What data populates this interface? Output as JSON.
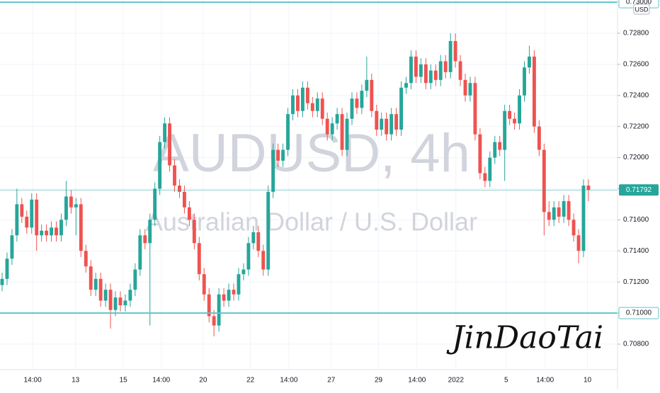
{
  "chart_data": {
    "type": "candlestick",
    "title": "AUDUSD, 4h",
    "subtitle": "Australian Dollar / U.S. Dollar",
    "annotation": "JinDaoTai",
    "currency": "USD",
    "up_color": "#26a69a",
    "down_color": "#ef5350",
    "line_color": "#5fc4c9",
    "grid": true,
    "ylim": [
      0.70636,
      0.73014
    ],
    "xlim": [
      -0.43,
      124.9
    ],
    "yticks": [
      {
        "value": 0.708,
        "label": "0.70800"
      },
      {
        "value": 0.71,
        "label": "0.71000"
      },
      {
        "value": 0.712,
        "label": "0.71200"
      },
      {
        "value": 0.714,
        "label": "0.71400"
      },
      {
        "value": 0.716,
        "label": "0.71600"
      },
      {
        "value": 0.718,
        "label": "0.71800"
      },
      {
        "value": 0.72,
        "label": "0.72000"
      },
      {
        "value": 0.722,
        "label": "0.72200"
      },
      {
        "value": 0.724,
        "label": "0.72400"
      },
      {
        "value": 0.726,
        "label": "0.72600"
      },
      {
        "value": 0.728,
        "label": "0.72800"
      }
    ],
    "xticks": [
      {
        "value": 6.2,
        "label": "14:00"
      },
      {
        "value": 14.9,
        "label": "13"
      },
      {
        "value": 24.6,
        "label": "15"
      },
      {
        "value": 32.3,
        "label": "14:00"
      },
      {
        "value": 40.8,
        "label": "20"
      },
      {
        "value": 50.4,
        "label": "22"
      },
      {
        "value": 58.2,
        "label": "14:00"
      },
      {
        "value": 66.8,
        "label": "27"
      },
      {
        "value": 76.4,
        "label": "29"
      },
      {
        "value": 84.2,
        "label": "14:00"
      },
      {
        "value": 92.1,
        "label": "2022"
      },
      {
        "value": 102.3,
        "label": "5"
      },
      {
        "value": 110.2,
        "label": "14:00"
      },
      {
        "value": 118.8,
        "label": "10"
      }
    ],
    "levels": [
      {
        "value": 0.73,
        "label": "0.73000"
      },
      {
        "value": 0.71,
        "label": "0.71000"
      }
    ],
    "last_price": {
      "value": 0.71792,
      "label": "0.71792"
    },
    "ohlc": [
      [
        0.7118,
        0.7126,
        0.7114,
        0.7122
      ],
      [
        0.7122,
        0.7139,
        0.7118,
        0.7135
      ],
      [
        0.7135,
        0.7154,
        0.7131,
        0.715
      ],
      [
        0.715,
        0.718,
        0.7146,
        0.717
      ],
      [
        0.717,
        0.7174,
        0.7158,
        0.7162
      ],
      [
        0.7162,
        0.7166,
        0.7151,
        0.7155
      ],
      [
        0.7155,
        0.7177,
        0.7151,
        0.7173
      ],
      [
        0.7173,
        0.7177,
        0.714,
        0.715
      ],
      [
        0.715,
        0.7157,
        0.7146,
        0.7153
      ],
      [
        0.7153,
        0.7157,
        0.7146,
        0.715
      ],
      [
        0.715,
        0.7159,
        0.7146,
        0.7155
      ],
      [
        0.7155,
        0.7159,
        0.7146,
        0.715
      ],
      [
        0.715,
        0.7164,
        0.7146,
        0.716
      ],
      [
        0.716,
        0.7185,
        0.7156,
        0.7175
      ],
      [
        0.7175,
        0.7179,
        0.7164,
        0.7168
      ],
      [
        0.7168,
        0.7174,
        0.715,
        0.717
      ],
      [
        0.717,
        0.7174,
        0.7136,
        0.714
      ],
      [
        0.714,
        0.7144,
        0.7126,
        0.713
      ],
      [
        0.713,
        0.7134,
        0.7111,
        0.7115
      ],
      [
        0.7115,
        0.7126,
        0.7111,
        0.7122
      ],
      [
        0.7122,
        0.7126,
        0.7104,
        0.7108
      ],
      [
        0.7108,
        0.7119,
        0.7104,
        0.7115
      ],
      [
        0.7115,
        0.7119,
        0.709,
        0.7102
      ],
      [
        0.7102,
        0.7114,
        0.7098,
        0.711
      ],
      [
        0.711,
        0.7114,
        0.7101,
        0.7105
      ],
      [
        0.7105,
        0.7112,
        0.7101,
        0.7108
      ],
      [
        0.7108,
        0.7119,
        0.7104,
        0.7115
      ],
      [
        0.7115,
        0.7132,
        0.7111,
        0.7128
      ],
      [
        0.7128,
        0.7154,
        0.7124,
        0.715
      ],
      [
        0.715,
        0.7154,
        0.7141,
        0.7145
      ],
      [
        0.7145,
        0.7164,
        0.7092,
        0.716
      ],
      [
        0.716,
        0.7184,
        0.7156,
        0.718
      ],
      [
        0.718,
        0.7214,
        0.7176,
        0.721
      ],
      [
        0.721,
        0.7226,
        0.7206,
        0.7222
      ],
      [
        0.7222,
        0.7226,
        0.7191,
        0.7195
      ],
      [
        0.7195,
        0.7199,
        0.7178,
        0.7182
      ],
      [
        0.7182,
        0.7186,
        0.7174,
        0.7178
      ],
      [
        0.7178,
        0.7182,
        0.7164,
        0.7168
      ],
      [
        0.7168,
        0.7172,
        0.7156,
        0.716
      ],
      [
        0.716,
        0.7164,
        0.7141,
        0.7145
      ],
      [
        0.7145,
        0.7149,
        0.7121,
        0.7125
      ],
      [
        0.7125,
        0.7129,
        0.7108,
        0.7112
      ],
      [
        0.7112,
        0.7116,
        0.7094,
        0.7098
      ],
      [
        0.7098,
        0.7102,
        0.7085,
        0.7092
      ],
      [
        0.7092,
        0.7116,
        0.7088,
        0.7112
      ],
      [
        0.7112,
        0.7116,
        0.7104,
        0.7108
      ],
      [
        0.7108,
        0.7119,
        0.7104,
        0.7115
      ],
      [
        0.7115,
        0.7119,
        0.7108,
        0.7112
      ],
      [
        0.7112,
        0.7129,
        0.7108,
        0.7125
      ],
      [
        0.7125,
        0.7132,
        0.7121,
        0.7128
      ],
      [
        0.7128,
        0.7149,
        0.7124,
        0.7145
      ],
      [
        0.7145,
        0.7156,
        0.7141,
        0.7152
      ],
      [
        0.7152,
        0.7156,
        0.7136,
        0.714
      ],
      [
        0.714,
        0.7144,
        0.7124,
        0.7128
      ],
      [
        0.7128,
        0.7182,
        0.7124,
        0.7178
      ],
      [
        0.7178,
        0.7209,
        0.7174,
        0.7205
      ],
      [
        0.7205,
        0.7209,
        0.7194,
        0.7198
      ],
      [
        0.7198,
        0.7209,
        0.7194,
        0.7205
      ],
      [
        0.7205,
        0.7232,
        0.7201,
        0.7228
      ],
      [
        0.7228,
        0.7244,
        0.7224,
        0.724
      ],
      [
        0.724,
        0.7244,
        0.7226,
        0.723
      ],
      [
        0.723,
        0.7249,
        0.7226,
        0.7245
      ],
      [
        0.7245,
        0.7249,
        0.7231,
        0.7235
      ],
      [
        0.7235,
        0.7239,
        0.7226,
        0.723
      ],
      [
        0.723,
        0.7242,
        0.7226,
        0.7238
      ],
      [
        0.7238,
        0.7242,
        0.7221,
        0.7225
      ],
      [
        0.7225,
        0.7229,
        0.7211,
        0.7215
      ],
      [
        0.7215,
        0.7226,
        0.7211,
        0.7222
      ],
      [
        0.7222,
        0.7232,
        0.7218,
        0.7228
      ],
      [
        0.7228,
        0.7232,
        0.7201,
        0.7205
      ],
      [
        0.7205,
        0.7229,
        0.7201,
        0.7225
      ],
      [
        0.7225,
        0.7242,
        0.7221,
        0.7238
      ],
      [
        0.7238,
        0.7242,
        0.7228,
        0.7232
      ],
      [
        0.7232,
        0.7247,
        0.7228,
        0.7243
      ],
      [
        0.7243,
        0.7265,
        0.7239,
        0.725
      ],
      [
        0.725,
        0.7254,
        0.7226,
        0.723
      ],
      [
        0.723,
        0.7234,
        0.7214,
        0.7218
      ],
      [
        0.7218,
        0.7229,
        0.7214,
        0.7225
      ],
      [
        0.7225,
        0.7229,
        0.7211,
        0.7215
      ],
      [
        0.7215,
        0.7232,
        0.7211,
        0.7228
      ],
      [
        0.7228,
        0.7232,
        0.7214,
        0.7218
      ],
      [
        0.7218,
        0.7249,
        0.7214,
        0.7245
      ],
      [
        0.7245,
        0.7252,
        0.7241,
        0.7248
      ],
      [
        0.7248,
        0.7269,
        0.7244,
        0.7265
      ],
      [
        0.7265,
        0.7269,
        0.7248,
        0.7252
      ],
      [
        0.7252,
        0.7264,
        0.7248,
        0.726
      ],
      [
        0.726,
        0.7264,
        0.7244,
        0.7248
      ],
      [
        0.7248,
        0.726,
        0.7244,
        0.7256
      ],
      [
        0.7256,
        0.726,
        0.7246,
        0.725
      ],
      [
        0.725,
        0.7266,
        0.7246,
        0.7262
      ],
      [
        0.7262,
        0.7266,
        0.7251,
        0.7255
      ],
      [
        0.7255,
        0.728,
        0.7251,
        0.7275
      ],
      [
        0.7275,
        0.728,
        0.7258,
        0.7262
      ],
      [
        0.7262,
        0.7266,
        0.7246,
        0.725
      ],
      [
        0.725,
        0.7254,
        0.7236,
        0.724
      ],
      [
        0.724,
        0.7252,
        0.7236,
        0.7248
      ],
      [
        0.7248,
        0.7252,
        0.7211,
        0.7215
      ],
      [
        0.7215,
        0.7219,
        0.7186,
        0.719
      ],
      [
        0.719,
        0.7194,
        0.7181,
        0.7185
      ],
      [
        0.7185,
        0.7204,
        0.7181,
        0.72
      ],
      [
        0.72,
        0.7214,
        0.7196,
        0.721
      ],
      [
        0.721,
        0.7214,
        0.7201,
        0.7205
      ],
      [
        0.7205,
        0.7234,
        0.7185,
        0.723
      ],
      [
        0.723,
        0.7234,
        0.7221,
        0.7225
      ],
      [
        0.7225,
        0.7229,
        0.7218,
        0.7222
      ],
      [
        0.7222,
        0.7244,
        0.7218,
        0.724
      ],
      [
        0.724,
        0.7262,
        0.7236,
        0.7258
      ],
      [
        0.7258,
        0.7272,
        0.7254,
        0.7265
      ],
      [
        0.7265,
        0.7269,
        0.7216,
        0.722
      ],
      [
        0.722,
        0.7224,
        0.7201,
        0.7205
      ],
      [
        0.7205,
        0.7209,
        0.715,
        0.7165
      ],
      [
        0.7165,
        0.7172,
        0.7156,
        0.716
      ],
      [
        0.716,
        0.7172,
        0.7156,
        0.7168
      ],
      [
        0.7168,
        0.7172,
        0.7158,
        0.7162
      ],
      [
        0.7162,
        0.7176,
        0.7158,
        0.7172
      ],
      [
        0.7172,
        0.7176,
        0.7156,
        0.716
      ],
      [
        0.716,
        0.7164,
        0.7146,
        0.715
      ],
      [
        0.715,
        0.7154,
        0.7132,
        0.714
      ],
      [
        0.714,
        0.7186,
        0.7136,
        0.7182
      ],
      [
        0.7182,
        0.7186,
        0.7172,
        0.71792
      ]
    ]
  }
}
